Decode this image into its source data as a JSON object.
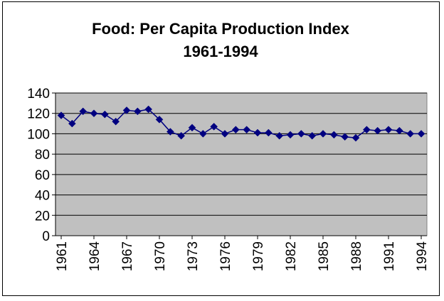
{
  "chart_data": {
    "type": "line",
    "title": "Food: Per Capita Production Index",
    "subtitle": "1961-1994",
    "xlabel": "",
    "ylabel": "",
    "ylim": [
      0,
      140
    ],
    "yticks": [
      0,
      20,
      40,
      60,
      80,
      100,
      120,
      140
    ],
    "grid": true,
    "legend": "none",
    "x": [
      1961,
      1962,
      1963,
      1964,
      1965,
      1966,
      1967,
      1968,
      1969,
      1970,
      1971,
      1972,
      1973,
      1974,
      1975,
      1976,
      1977,
      1978,
      1979,
      1980,
      1981,
      1982,
      1983,
      1984,
      1985,
      1986,
      1987,
      1988,
      1989,
      1990,
      1991,
      1992,
      1993,
      1994
    ],
    "xtick_labels": [
      "1961",
      "1964",
      "1967",
      "1970",
      "1973",
      "1976",
      "1979",
      "1982",
      "1985",
      "1988",
      "1991",
      "1994"
    ],
    "series": [
      {
        "name": "Food Per Capita Production Index",
        "values": [
          118,
          110,
          122,
          120,
          119,
          112,
          123,
          122,
          124,
          114,
          102,
          98,
          106,
          100,
          107,
          100,
          104,
          104,
          101,
          101,
          98,
          99,
          100,
          98,
          100,
          99,
          97,
          96,
          104,
          103,
          104,
          103,
          100,
          100
        ]
      }
    ],
    "colors": {
      "plot_background": "#c0c0c0",
      "series_line": "#000080",
      "marker": "#000080",
      "gridline": "#000000",
      "text": "#000000"
    },
    "marker_shape": "diamond"
  }
}
